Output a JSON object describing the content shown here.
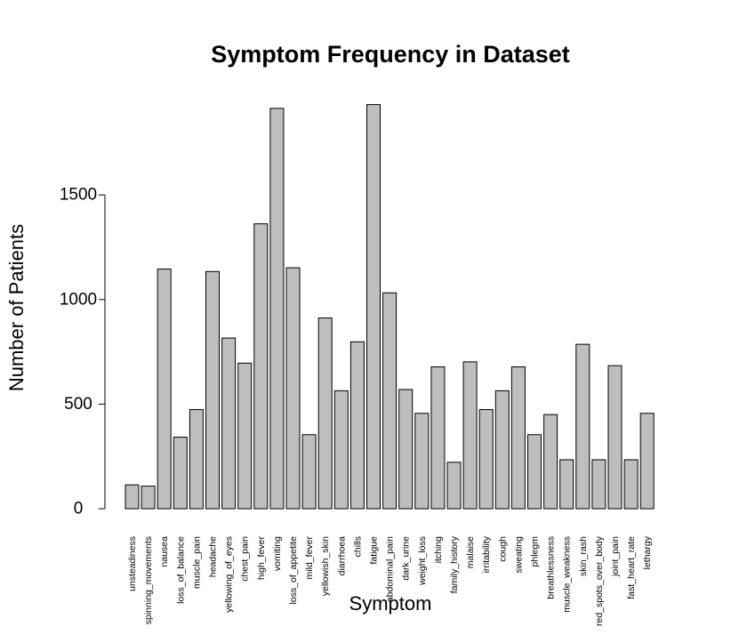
{
  "chart_data": {
    "type": "bar",
    "title": "Symptom Frequency in Dataset",
    "xlabel": "Symptom",
    "ylabel": "Number of Patients",
    "ylim": [
      0,
      1950
    ],
    "yticks": [
      0,
      500,
      1000,
      1500
    ],
    "grid": false,
    "bar_color": "#bebebe",
    "categories": [
      "unsteadiness",
      "spinning_movements",
      "nausea",
      "loss_of_balance",
      "muscle_pain",
      "headache",
      "yellowing_of_eyes",
      "chest_pain",
      "high_fever",
      "vomiting",
      "loss_of_appetite",
      "mild_fever",
      "yellowish_skin",
      "diarrhoea",
      "chills",
      "fatigue",
      "abdominal_pain",
      "dark_urine",
      "weight_loss",
      "itching",
      "family_history",
      "malaise",
      "irritability",
      "cough",
      "sweating",
      "phlegm",
      "breathlessness",
      "muscle_weakness",
      "skin_rash",
      "red_spots_over_body",
      "joint_pain",
      "fast_heart_rate",
      "lethargy"
    ],
    "values": [
      114,
      108,
      1146,
      342,
      474,
      1134,
      816,
      696,
      1362,
      1914,
      1152,
      354,
      912,
      564,
      798,
      1932,
      1032,
      570,
      456,
      678,
      222,
      702,
      474,
      564,
      678,
      354,
      450,
      234,
      786,
      234,
      684,
      234,
      456
    ]
  }
}
